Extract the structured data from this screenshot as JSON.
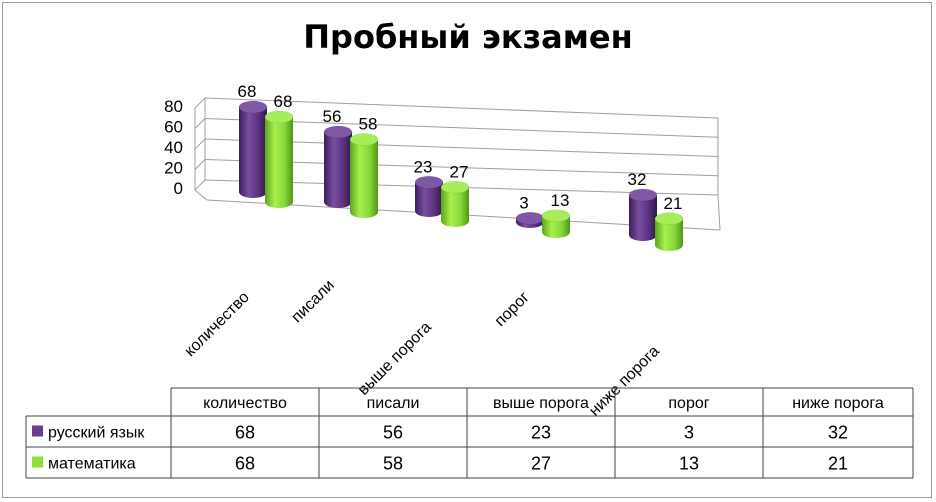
{
  "chart_data": {
    "type": "bar",
    "title": "Пробный экзамен",
    "categories": [
      "количество",
      "писали",
      "выше порога",
      "порог",
      "ниже порога"
    ],
    "series": [
      {
        "name": "русский язык",
        "values": [
          68,
          56,
          23,
          3,
          32
        ],
        "color": "#6a3d8f"
      },
      {
        "name": "математика",
        "values": [
          68,
          58,
          27,
          13,
          21
        ],
        "color": "#8fdf3a"
      }
    ],
    "yticks": [
      "0",
      "20",
      "40",
      "60",
      "80"
    ],
    "ylim": [
      0,
      80
    ],
    "grid": true,
    "style": "3d-cylinder",
    "data_table": true
  }
}
